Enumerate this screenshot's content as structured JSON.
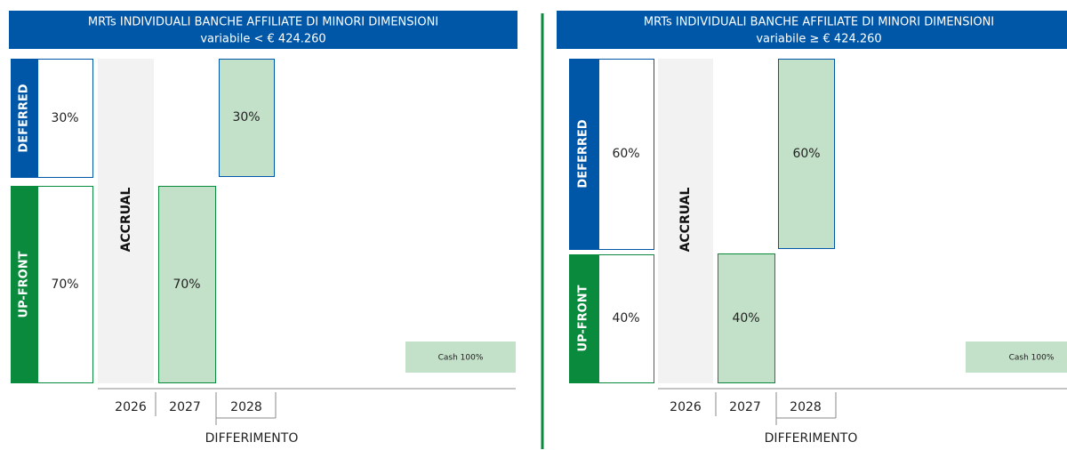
{
  "panels": [
    {
      "title": "MRTs INDIVIDUALI BANCHE AFFILIATE DI MINORI DIMENSIONI",
      "subtitle": "variabile < € 424.260",
      "deferred_label": "DEFERRED",
      "upfront_label": "UP-FRONT",
      "deferred_pct": "30%",
      "upfront_pct": "70%",
      "upfront_paid_pct": "70%",
      "deferred_paid_pct": "30%",
      "accrual": "ACCRUAL",
      "years": [
        "2026",
        "2027",
        "2028"
      ],
      "axis_label": "DIFFERIMENTO",
      "cash": "Cash 100%"
    },
    {
      "title": "MRTs INDIVIDUALI BANCHE AFFILIATE DI MINORI DIMENSIONI",
      "subtitle": "variabile ≥ € 424.260",
      "deferred_label": "DEFERRED",
      "upfront_label": "UP-FRONT",
      "deferred_pct": "60%",
      "upfront_pct": "40%",
      "upfront_paid_pct": "40%",
      "deferred_paid_pct": "60%",
      "accrual": "ACCRUAL",
      "years": [
        "2026",
        "2027",
        "2028"
      ],
      "axis_label": "DIFFERIMENTO",
      "cash": "Cash 100%"
    }
  ]
}
